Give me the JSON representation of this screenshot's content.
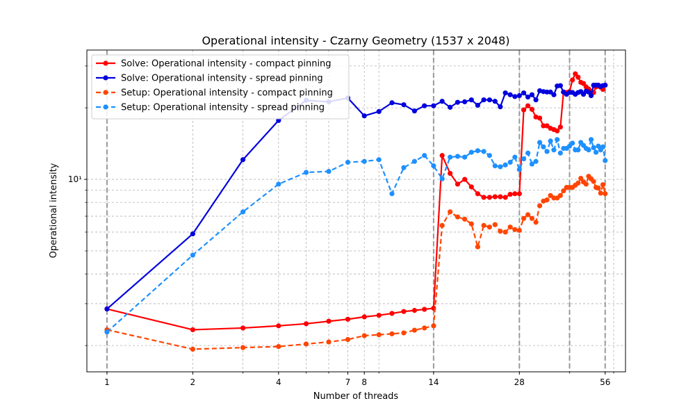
{
  "chart_data": {
    "type": "line",
    "title": "Operational intensity - Czarny Geometry (1537 x 2048)",
    "xlabel": "Number of threads",
    "ylabel": "Operational intensity",
    "xscale": "log2",
    "yscale": "log",
    "xlim": [
      0.85,
      66
    ],
    "ylim": [
      1.55,
      35
    ],
    "grid": true,
    "legend_position": "top-left",
    "x_ticks": [
      {
        "value": 1,
        "label": "1"
      },
      {
        "value": 2,
        "label": "2"
      },
      {
        "value": 4,
        "label": "4"
      },
      {
        "value": 7,
        "label": "7"
      },
      {
        "value": 8,
        "label": "8"
      },
      {
        "value": 14,
        "label": "14"
      },
      {
        "value": 28,
        "label": "28"
      },
      {
        "value": 56,
        "label": "56"
      }
    ],
    "y_ticks": [
      {
        "value": 10,
        "label": "10¹"
      }
    ],
    "vertical_markers": [
      1,
      14,
      28,
      42,
      56
    ],
    "series": [
      {
        "name": "Solve: Operational intensity - compact pinning",
        "color": "#ff0000",
        "line_style": "solid",
        "x": [
          1,
          2,
          3,
          4,
          5,
          6,
          7,
          8,
          9,
          10,
          11,
          12,
          13,
          14,
          15,
          16,
          17,
          18,
          19,
          20,
          21,
          22,
          23,
          24,
          25,
          26,
          27,
          28,
          29,
          30,
          31,
          32,
          33,
          34,
          35,
          36,
          37,
          38,
          39,
          40,
          41,
          42,
          43,
          44,
          45,
          46,
          47,
          48,
          49,
          50,
          51,
          52,
          53,
          54,
          55,
          56
        ],
        "y": [
          2.85,
          2.33,
          2.37,
          2.42,
          2.47,
          2.53,
          2.58,
          2.64,
          2.68,
          2.73,
          2.78,
          2.81,
          2.84,
          2.87,
          12.6,
          10.6,
          9.55,
          10.0,
          9.3,
          8.7,
          8.4,
          8.4,
          8.45,
          8.45,
          8.4,
          8.65,
          8.7,
          8.7,
          19.6,
          20.4,
          19.7,
          18.3,
          18.1,
          16.8,
          16.8,
          16.4,
          16.2,
          16.0,
          16.6,
          23.3,
          23.2,
          23.4,
          26.2,
          27.8,
          26.9,
          25.6,
          25.3,
          24.5,
          24.0,
          23.5,
          23.2,
          24.5,
          24.7,
          24.4,
          23.9,
          24.9
        ],
        "label_rendered_in_legend": true
      },
      {
        "name": "Solve: Operational intensity - spread pinning",
        "color": "#0000dd",
        "line_style": "solid",
        "x": [
          1,
          2,
          3,
          4,
          5,
          6,
          7,
          8,
          9,
          10,
          11,
          12,
          13,
          14,
          15,
          16,
          17,
          18,
          19,
          20,
          21,
          22,
          23,
          24,
          25,
          26,
          27,
          28,
          29,
          30,
          31,
          32,
          33,
          34,
          35,
          36,
          37,
          38,
          39,
          40,
          41,
          42,
          43,
          44,
          45,
          46,
          47,
          48,
          49,
          50,
          51,
          52,
          53,
          54,
          55,
          56
        ],
        "y": [
          2.85,
          5.9,
          12.1,
          17.7,
          21.5,
          21.2,
          22.0,
          18.5,
          19.3,
          21.0,
          20.6,
          19.4,
          20.4,
          20.4,
          21.3,
          20.1,
          21.1,
          21.2,
          21.6,
          20.5,
          21.6,
          21.6,
          21.3,
          20.2,
          23.1,
          22.7,
          22.3,
          22.5,
          23.1,
          22.2,
          22.7,
          21.6,
          23.6,
          23.4,
          23.3,
          23.3,
          22.7,
          24.7,
          24.8,
          23.3,
          22.8,
          23.2,
          23.2,
          22.8,
          23.2,
          23.4,
          22.8,
          23.5,
          23.3,
          22.5,
          24.9,
          24.9,
          24.9,
          24.6,
          24.8,
          24.9
        ],
        "label_rendered_in_legend": true
      },
      {
        "name": "Setup: Operational intensity - compact pinning",
        "color": "#ff4500",
        "line_style": "dashed",
        "x": [
          1,
          2,
          3,
          4,
          5,
          6,
          7,
          8,
          9,
          10,
          11,
          12,
          13,
          14,
          15,
          16,
          17,
          18,
          19,
          20,
          21,
          22,
          23,
          24,
          25,
          26,
          27,
          28,
          29,
          30,
          31,
          32,
          33,
          34,
          35,
          36,
          37,
          38,
          39,
          40,
          41,
          42,
          43,
          44,
          45,
          46,
          47,
          48,
          49,
          50,
          51,
          52,
          53,
          54,
          55,
          56
        ],
        "y": [
          2.33,
          1.93,
          1.96,
          1.98,
          2.03,
          2.07,
          2.12,
          2.2,
          2.22,
          2.24,
          2.26,
          2.32,
          2.37,
          2.42,
          6.4,
          7.3,
          6.95,
          6.8,
          6.5,
          5.2,
          6.4,
          6.3,
          6.45,
          6.05,
          6.0,
          6.3,
          6.15,
          6.1,
          6.85,
          7.1,
          6.85,
          6.6,
          7.75,
          8.1,
          8.2,
          8.55,
          8.35,
          8.35,
          8.55,
          8.95,
          9.25,
          9.25,
          9.25,
          9.45,
          9.65,
          10.1,
          9.75,
          9.55,
          10.3,
          10.05,
          9.8,
          9.25,
          9.2,
          8.75,
          9.5,
          8.7
        ],
        "label_rendered_in_legend": true
      },
      {
        "name": "Setup: Operational intensity - spread pinning",
        "color": "#1e90ff",
        "line_style": "dashed",
        "x": [
          1,
          2,
          3,
          4,
          5,
          6,
          7,
          8,
          9,
          10,
          11,
          12,
          13,
          14,
          15,
          16,
          17,
          18,
          19,
          20,
          21,
          22,
          23,
          24,
          25,
          26,
          27,
          28,
          29,
          30,
          31,
          32,
          33,
          34,
          35,
          36,
          37,
          38,
          39,
          40,
          41,
          42,
          43,
          44,
          45,
          46,
          47,
          48,
          49,
          50,
          51,
          52,
          53,
          54,
          55,
          56
        ],
        "y": [
          2.28,
          4.8,
          7.3,
          9.55,
          10.7,
          10.8,
          11.8,
          11.9,
          12.1,
          8.7,
          11.2,
          11.9,
          12.6,
          11.4,
          10.05,
          12.4,
          12.5,
          12.4,
          13.0,
          13.2,
          13.1,
          12.6,
          11.4,
          11.3,
          11.5,
          11.8,
          12.4,
          11.0,
          12.2,
          12.9,
          11.6,
          11.9,
          14.3,
          13.7,
          13.1,
          14.5,
          13.3,
          14.7,
          12.9,
          13.5,
          13.5,
          13.8,
          14.2,
          13.3,
          13.3,
          14.3,
          13.9,
          13.5,
          13.3,
          14.7,
          13.6,
          13.0,
          13.8,
          13.3,
          13.7,
          12.0
        ],
        "label_rendered_in_legend": true
      }
    ]
  }
}
